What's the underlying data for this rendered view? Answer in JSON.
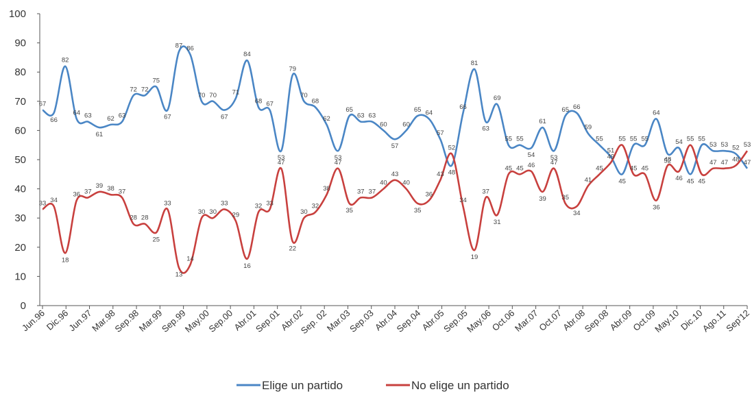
{
  "chart_data": {
    "type": "line",
    "title": "",
    "xlabel": "",
    "ylabel": "",
    "ylim": [
      0,
      100
    ],
    "yticks": [
      "0",
      "10",
      "20",
      "30",
      "40",
      "50",
      "60",
      "70",
      "80",
      "90",
      "100"
    ],
    "grid": false,
    "legend": "bottom",
    "x_tick_labels": [
      "Jun.96",
      "Dic.96",
      "Jun.97",
      "Mar.98",
      "Sep.98",
      "Mar.99",
      "Sep.99",
      "May.00",
      "Sep.00",
      "Abr.01",
      "Sep.01",
      "Abr.02",
      "Sep. 02",
      "Mar.03",
      "Sep.03",
      "Abr.04",
      "Sep.04",
      "Abr.05",
      "Sep.05",
      "May.06",
      "Oct.06",
      "Mar.07",
      "Oct.07",
      "Abr.08",
      "Sep.08",
      "Abr.09",
      "Oct.09",
      "May.10",
      "Dic.10",
      "Ago.11",
      "Sep'12"
    ],
    "series": [
      {
        "name": "Elige un partido",
        "color": "#4a86c5",
        "values": [
          67,
          66,
          82,
          64,
          63,
          61,
          62,
          63,
          72,
          72,
          75,
          67,
          87,
          86,
          70,
          70,
          67,
          71,
          84,
          68,
          67,
          53,
          79,
          70,
          68,
          62,
          53,
          65,
          63,
          63,
          60,
          57,
          60,
          65,
          64,
          57,
          48,
          66,
          81,
          63,
          69,
          55,
          55,
          54,
          61,
          53,
          65,
          66,
          59,
          55,
          51,
          45,
          55,
          55,
          64,
          52,
          54,
          45,
          55,
          53,
          53,
          52,
          47
        ]
      },
      {
        "name": "No elige un partido",
        "color": "#c8403e",
        "values": [
          33,
          34,
          18,
          36,
          37,
          39,
          38,
          37,
          28,
          28,
          25,
          33,
          13,
          14,
          30,
          30,
          33,
          29,
          16,
          32,
          33,
          47,
          22,
          30,
          32,
          38,
          47,
          35,
          37,
          37,
          40,
          43,
          40,
          35,
          36,
          43,
          52,
          34,
          19,
          37,
          31,
          45,
          45,
          46,
          39,
          47,
          35,
          34,
          41,
          45,
          49,
          55,
          45,
          45,
          36,
          48,
          46,
          55,
          45,
          47,
          47,
          48,
          53
        ]
      }
    ],
    "data_labels_a": [
      "67",
      "66",
      "82",
      "64",
      "63",
      "61",
      "62",
      "63",
      "72",
      "72",
      "75",
      "67",
      "87",
      "86",
      "70",
      "70",
      "67",
      "71",
      "84",
      "68",
      "67",
      "53",
      "79",
      "70",
      "68",
      "62",
      "53",
      "65",
      "63",
      "63",
      "60",
      "57",
      "60",
      "65",
      "64",
      "57",
      "48",
      "66",
      "81",
      "63",
      "69",
      "55",
      "55",
      "54",
      "61",
      "53",
      "65",
      "66",
      "59",
      "55",
      "51",
      "45",
      "55",
      "55",
      "64",
      "52",
      "54",
      "45",
      "55",
      "53",
      "53",
      "52",
      "47"
    ],
    "data_labels_b": [
      "33",
      "34",
      "18",
      "36",
      "37",
      "39",
      "38",
      "37",
      "28",
      "28",
      "25",
      "33",
      "13",
      "14",
      "30",
      "30",
      "33",
      "29",
      "16",
      "32",
      "33",
      "47",
      "22",
      "30",
      "32",
      "38",
      "47",
      "35",
      "37",
      "37",
      "40",
      "43",
      "40",
      "35",
      "36",
      "43",
      "52",
      "34",
      "19",
      "37",
      "31",
      "45",
      "45",
      "46",
      "39",
      "47",
      "35",
      "34",
      "41",
      "45",
      "49",
      "55",
      "45",
      "45",
      "36",
      "48",
      "46",
      "55",
      "45",
      "47",
      "47",
      "48",
      "53"
    ]
  }
}
